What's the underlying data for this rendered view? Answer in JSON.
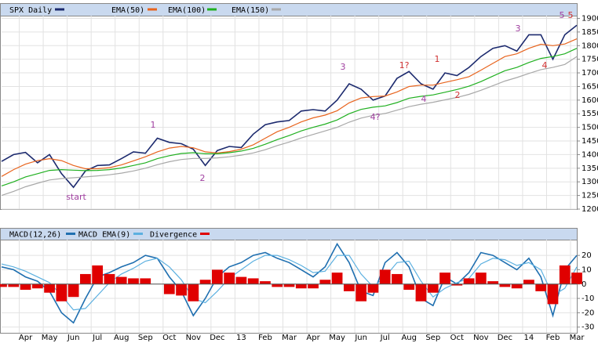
{
  "chart_data": [
    {
      "type": "line",
      "categories": [
        null,
        null,
        "Apr",
        null,
        "May",
        null,
        "Jun",
        null,
        "Jul",
        null,
        "Aug",
        null,
        "Sep",
        null,
        "Oct",
        null,
        "Nov",
        null,
        "Dec",
        null,
        "13",
        null,
        "Feb",
        null,
        "Mar",
        null,
        "Apr",
        null,
        "May",
        null,
        "Jun",
        null,
        "Jul",
        null,
        "Aug",
        null,
        "Sep",
        null,
        "Oct",
        null,
        "Nov",
        null,
        "Dec",
        null,
        "14",
        null,
        "Feb",
        null,
        "Mar"
      ],
      "series": [
        {
          "name": "SPX Daily",
          "color": "#1c2a6e",
          "values": [
            1375,
            1400,
            1408,
            1370,
            1400,
            1330,
            1280,
            1340,
            1360,
            1362,
            1385,
            1410,
            1405,
            1460,
            1445,
            1440,
            1420,
            1360,
            1415,
            1430,
            1426,
            1475,
            1510,
            1520,
            1525,
            1560,
            1565,
            1560,
            1600,
            1660,
            1640,
            1600,
            1615,
            1680,
            1705,
            1660,
            1640,
            1700,
            1690,
            1720,
            1760,
            1790,
            1800,
            1780,
            1840,
            1840,
            1750,
            1840,
            1875
          ]
        },
        {
          "name": "EMA(50)",
          "color": "#e8641e",
          "values": [
            1320,
            1345,
            1365,
            1378,
            1385,
            1378,
            1360,
            1348,
            1348,
            1352,
            1362,
            1377,
            1392,
            1410,
            1424,
            1430,
            1425,
            1410,
            1406,
            1411,
            1420,
            1436,
            1460,
            1484,
            1500,
            1520,
            1535,
            1545,
            1561,
            1590,
            1608,
            1613,
            1615,
            1630,
            1650,
            1655,
            1655,
            1665,
            1675,
            1686,
            1710,
            1735,
            1760,
            1770,
            1790,
            1805,
            1800,
            1806,
            1825
          ]
        },
        {
          "name": "EMA(100)",
          "color": "#20b020",
          "values": [
            1285,
            1300,
            1318,
            1330,
            1342,
            1345,
            1343,
            1341,
            1342,
            1345,
            1351,
            1360,
            1370,
            1385,
            1396,
            1404,
            1407,
            1403,
            1403,
            1407,
            1413,
            1423,
            1438,
            1455,
            1470,
            1487,
            1500,
            1512,
            1527,
            1550,
            1566,
            1574,
            1579,
            1591,
            1607,
            1614,
            1619,
            1629,
            1639,
            1651,
            1668,
            1688,
            1708,
            1720,
            1738,
            1753,
            1760,
            1770,
            1790
          ]
        },
        {
          "name": "EMA(150)",
          "color": "#a8a8a8",
          "values": [
            1250,
            1265,
            1282,
            1295,
            1307,
            1312,
            1315,
            1318,
            1322,
            1326,
            1332,
            1340,
            1350,
            1363,
            1374,
            1382,
            1386,
            1386,
            1388,
            1392,
            1398,
            1406,
            1418,
            1433,
            1446,
            1461,
            1474,
            1487,
            1500,
            1519,
            1534,
            1544,
            1551,
            1563,
            1576,
            1585,
            1592,
            1601,
            1610,
            1621,
            1636,
            1653,
            1670,
            1683,
            1698,
            1712,
            1720,
            1731,
            1760
          ]
        }
      ],
      "annotations": [
        "start",
        "1",
        "2",
        "3",
        "4?",
        "1?",
        "4",
        "1",
        "2",
        "3",
        "4",
        "5",
        "5"
      ],
      "ylim": [
        1200,
        1910
      ],
      "yticks": [
        1200,
        1250,
        1300,
        1350,
        1400,
        1450,
        1500,
        1550,
        1600,
        1650,
        1700,
        1750,
        1800,
        1850,
        1900
      ],
      "grid": true
    },
    {
      "type": "line",
      "series": [
        {
          "name": "MACD(12,26)",
          "color": "#1f6fb0",
          "values": [
            12,
            10,
            5,
            2,
            -5,
            -20,
            -27,
            -10,
            5,
            8,
            12,
            15,
            20,
            18,
            5,
            -5,
            -22,
            -10,
            5,
            12,
            15,
            20,
            22,
            18,
            15,
            10,
            5,
            12,
            28,
            15,
            -5,
            -8,
            15,
            22,
            12,
            -10,
            -15,
            5,
            0,
            8,
            22,
            20,
            15,
            10,
            18,
            5,
            -22,
            10,
            20
          ]
        },
        {
          "name": "MACD EMA(9)",
          "color": "#5cb0e0",
          "values": [
            14,
            12,
            9,
            5,
            1,
            -8,
            -18,
            -17,
            -8,
            1,
            7,
            11,
            16,
            18,
            12,
            3,
            -10,
            -13,
            -5,
            4,
            10,
            16,
            20,
            20,
            17,
            13,
            8,
            9,
            20,
            20,
            7,
            -2,
            5,
            15,
            16,
            2,
            -9,
            -3,
            1,
            4,
            14,
            18,
            17,
            13,
            15,
            10,
            -8,
            -3,
            12
          ]
        },
        {
          "name": "Divergence",
          "type": "bar",
          "color": "#e00000",
          "values": [
            -2,
            -2,
            -4,
            -3,
            -6,
            -12,
            -9,
            7,
            13,
            7,
            5,
            4,
            4,
            0,
            -7,
            -8,
            -12,
            3,
            10,
            8,
            5,
            4,
            2,
            -2,
            -2,
            -3,
            -3,
            3,
            8,
            -5,
            -12,
            -6,
            10,
            7,
            -4,
            -12,
            -6,
            8,
            -1,
            4,
            8,
            2,
            -2,
            -3,
            3,
            -5,
            -14,
            13,
            8
          ]
        }
      ],
      "ylim": [
        -34,
        31
      ],
      "yticks": [
        20,
        10,
        0,
        -10,
        -20,
        -30
      ],
      "grid": true
    }
  ]
}
